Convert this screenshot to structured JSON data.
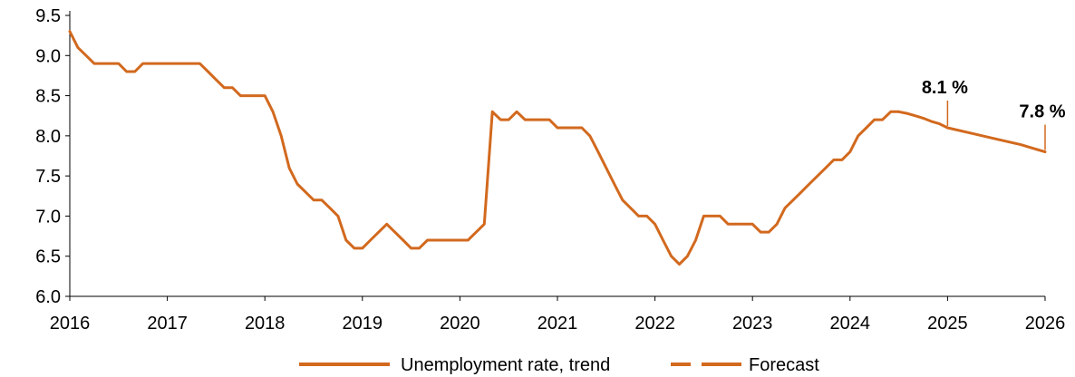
{
  "chart_data": {
    "type": "line",
    "title": "",
    "xlabel": "",
    "ylabel": "",
    "xlim": [
      2016,
      2026
    ],
    "ylim": [
      6.0,
      9.5
    ],
    "x_ticks": [
      "2016",
      "2017",
      "2018",
      "2019",
      "2020",
      "2021",
      "2022",
      "2023",
      "2024",
      "2025",
      "2026"
    ],
    "y_ticks": [
      "6.0",
      "6.5",
      "7.0",
      "7.5",
      "8.0",
      "8.5",
      "9.0",
      "9.5"
    ],
    "grid": false,
    "legend_position": "bottom",
    "line_color": "#D2691E",
    "series": [
      {
        "name": "Unemployment rate, trend",
        "style": "solid",
        "x": [
          2016.0,
          2016.083,
          2016.167,
          2016.25,
          2016.333,
          2016.417,
          2016.5,
          2016.583,
          2016.667,
          2016.75,
          2016.833,
          2016.917,
          2017.0,
          2017.083,
          2017.167,
          2017.25,
          2017.333,
          2017.417,
          2017.5,
          2017.583,
          2017.667,
          2017.75,
          2017.833,
          2017.917,
          2018.0,
          2018.083,
          2018.167,
          2018.25,
          2018.333,
          2018.417,
          2018.5,
          2018.583,
          2018.667,
          2018.75,
          2018.833,
          2018.917,
          2019.0,
          2019.083,
          2019.167,
          2019.25,
          2019.333,
          2019.417,
          2019.5,
          2019.583,
          2019.667,
          2019.75,
          2019.833,
          2019.917,
          2020.0,
          2020.083,
          2020.167,
          2020.25,
          2020.333,
          2020.417,
          2020.5,
          2020.583,
          2020.667,
          2020.75,
          2020.833,
          2020.917,
          2021.0,
          2021.083,
          2021.167,
          2021.25,
          2021.333,
          2021.417,
          2021.5,
          2021.583,
          2021.667,
          2021.75,
          2021.833,
          2021.917,
          2022.0,
          2022.083,
          2022.167,
          2022.25,
          2022.333,
          2022.417,
          2022.5,
          2022.583,
          2022.667,
          2022.75,
          2022.833,
          2022.917,
          2023.0,
          2023.083,
          2023.167,
          2023.25,
          2023.333,
          2023.417,
          2023.5,
          2023.583,
          2023.667,
          2023.75,
          2023.833,
          2023.917,
          2024.0,
          2024.083,
          2024.167,
          2024.25,
          2024.333,
          2024.417,
          2024.5
        ],
        "values": [
          9.3,
          9.1,
          9.0,
          8.9,
          8.9,
          8.9,
          8.9,
          8.8,
          8.8,
          8.9,
          8.9,
          8.9,
          8.9,
          8.9,
          8.9,
          8.9,
          8.9,
          8.8,
          8.7,
          8.6,
          8.6,
          8.5,
          8.5,
          8.5,
          8.5,
          8.3,
          8.0,
          7.6,
          7.4,
          7.3,
          7.2,
          7.2,
          7.1,
          7.0,
          6.7,
          6.6,
          6.6,
          6.7,
          6.8,
          6.9,
          6.8,
          6.7,
          6.6,
          6.6,
          6.7,
          6.7,
          6.7,
          6.7,
          6.7,
          6.7,
          6.8,
          6.9,
          8.3,
          8.2,
          8.2,
          8.3,
          8.2,
          8.2,
          8.2,
          8.2,
          8.1,
          8.1,
          8.1,
          8.1,
          8.0,
          7.8,
          7.6,
          7.4,
          7.2,
          7.1,
          7.0,
          7.0,
          6.9,
          6.7,
          6.5,
          6.4,
          6.5,
          6.7,
          7.0,
          7.0,
          7.0,
          6.9,
          6.9,
          6.9,
          6.9,
          6.8,
          6.8,
          6.9,
          7.1,
          7.2,
          7.3,
          7.4,
          7.5,
          7.6,
          7.7,
          7.7,
          7.8,
          8.0,
          8.1,
          8.2,
          8.2,
          8.3,
          8.3
        ]
      },
      {
        "name": "Forecast",
        "style": "dashed",
        "x": [
          2024.5,
          2024.583,
          2024.667,
          2024.75,
          2024.833,
          2024.917,
          2025.0,
          2025.25,
          2025.5,
          2025.75,
          2026.0
        ],
        "values": [
          8.3,
          8.28,
          8.25,
          8.22,
          8.18,
          8.15,
          8.1,
          8.03,
          7.96,
          7.89,
          7.8
        ]
      }
    ],
    "annotations": [
      {
        "text": "8.1 %",
        "x": 2025.0,
        "y": 8.1
      },
      {
        "text": "7.8 %",
        "x": 2026.0,
        "y": 7.8
      }
    ]
  }
}
